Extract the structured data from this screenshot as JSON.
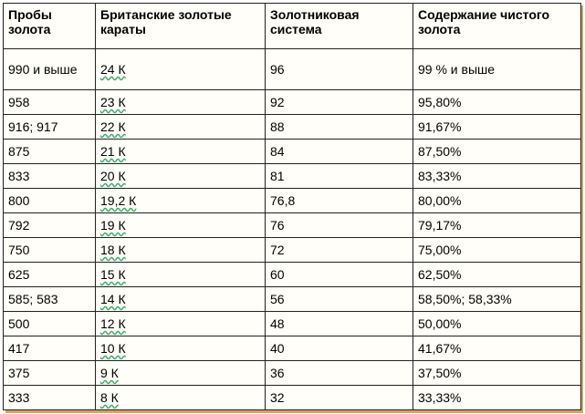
{
  "table": {
    "header": [
      "Пробы золота",
      "Британские золотые караты",
      "Золотниковая система",
      "Содержание чистого золота"
    ],
    "rows": [
      [
        "990 и выше",
        "24 К",
        "96",
        "99 % и выше"
      ],
      [
        "958",
        "23 К",
        "92",
        "95,80%"
      ],
      [
        "916; 917",
        "22 К",
        "88",
        "91,67%"
      ],
      [
        "875",
        "21 К",
        "84",
        "87,50%"
      ],
      [
        "833",
        "20 К",
        "81",
        "83,33%"
      ],
      [
        "800",
        "19,2 К",
        "76,8",
        "80,00%"
      ],
      [
        "792",
        "19 К",
        "76",
        "79,17%"
      ],
      [
        "750",
        "18 К",
        "72",
        "75,00%"
      ],
      [
        "625",
        "15 К",
        "60",
        "62,50%"
      ],
      [
        "585; 583",
        "14 К",
        "56",
        "58,50%; 58,33%"
      ],
      [
        "500",
        "12 К",
        "48",
        "50,00%"
      ],
      [
        "417",
        "10 К",
        "40",
        "41,67%"
      ],
      [
        "375",
        "9 К",
        "36",
        "37,50%"
      ],
      [
        "333",
        "8 К",
        "32",
        "33,33%"
      ]
    ]
  }
}
